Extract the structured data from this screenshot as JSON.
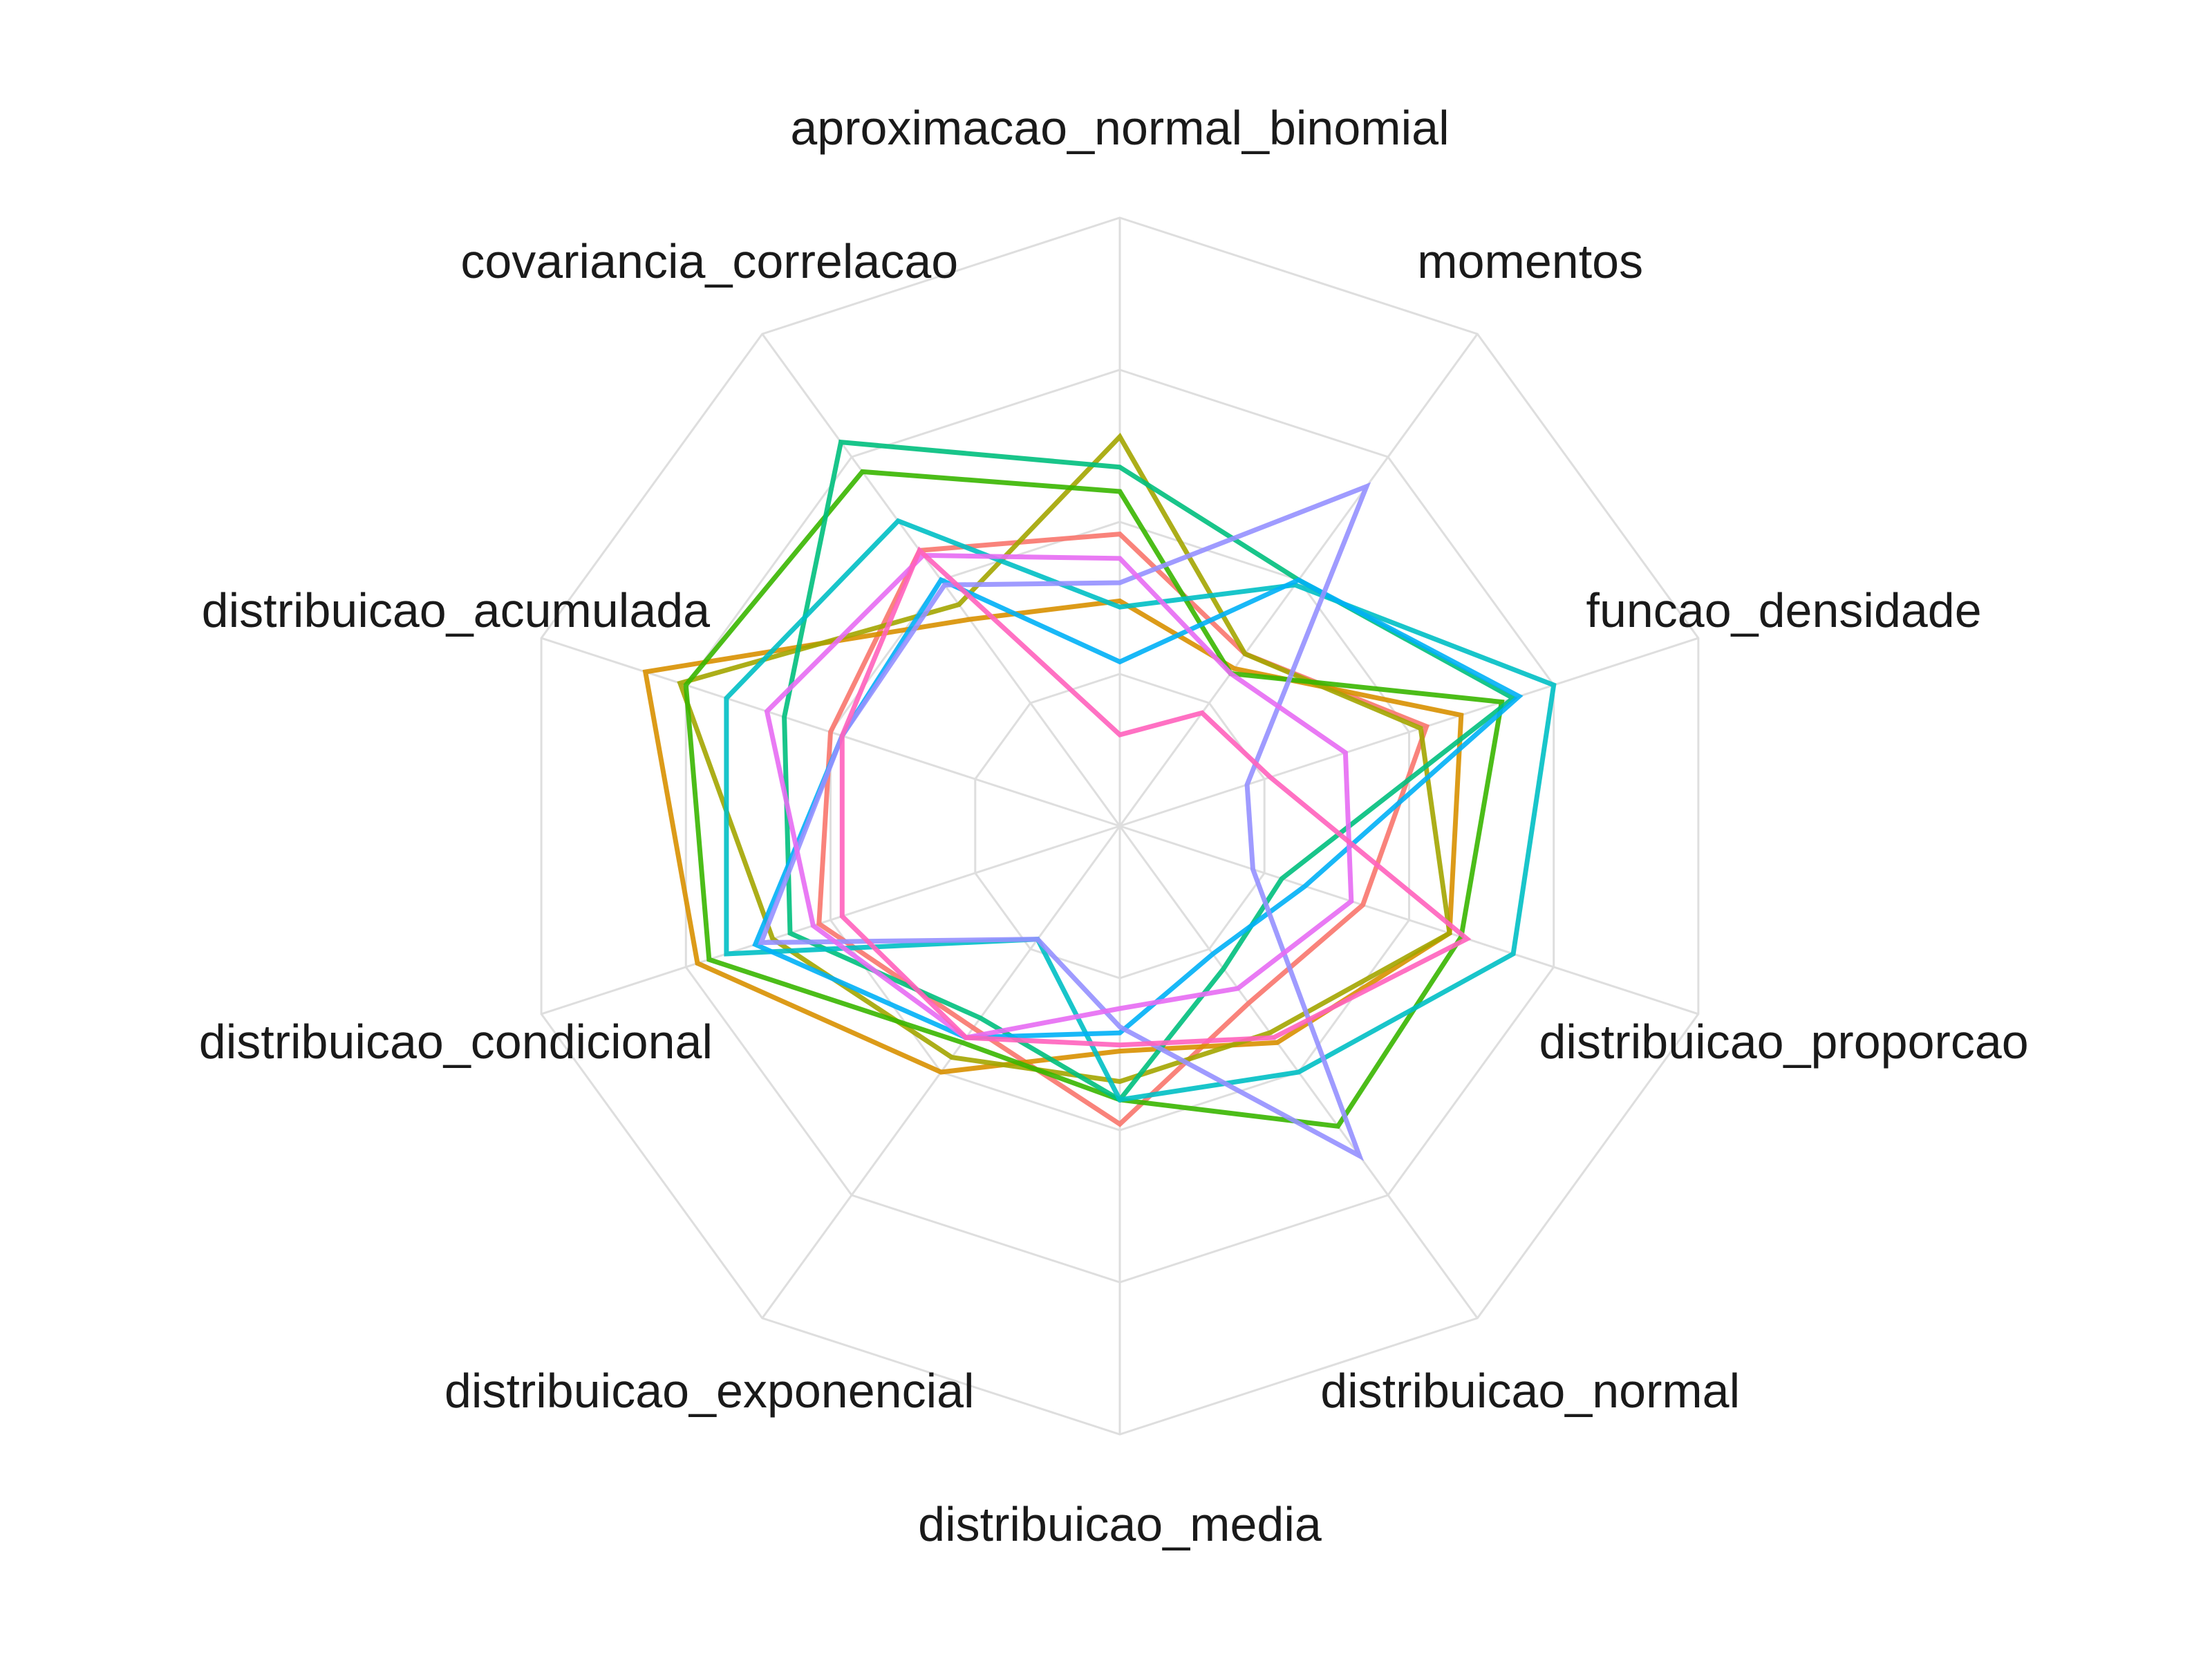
{
  "chart_data": {
    "type": "radar",
    "title": "",
    "axes": [
      "aproximacao_normal_binomial",
      "momentos",
      "funcao_densidade",
      "distribuicao_proporcao",
      "distribuicao_normal",
      "distribuicao_media",
      "distribuicao_exponencial",
      "distribuicao_condicional",
      "distribuicao_acumulada",
      "covariancia_correlacao"
    ],
    "range": [
      0,
      1
    ],
    "rings": 4,
    "grid": true,
    "legend": "none",
    "series": [
      {
        "color": "#F8766D",
        "values": [
          0.48,
          0.35,
          0.53,
          0.42,
          0.36,
          0.49,
          0.41,
          0.52,
          0.5,
          0.56
        ]
      },
      {
        "color": "#D89000",
        "values": [
          0.37,
          0.32,
          0.59,
          0.57,
          0.44,
          0.37,
          0.5,
          0.73,
          0.82,
          0.42
        ]
      },
      {
        "color": "#A3A500",
        "values": [
          0.64,
          0.35,
          0.52,
          0.57,
          0.42,
          0.42,
          0.47,
          0.6,
          0.76,
          0.45
        ]
      },
      {
        "color": "#39B600",
        "values": [
          0.55,
          0.31,
          0.66,
          0.59,
          0.61,
          0.45,
          0.44,
          0.71,
          0.75,
          0.72
        ]
      },
      {
        "color": "#00BF7D",
        "values": [
          0.59,
          0.5,
          0.68,
          0.28,
          0.29,
          0.45,
          0.39,
          0.57,
          0.58,
          0.78
        ]
      },
      {
        "color": "#00BFC4",
        "values": [
          0.36,
          0.49,
          0.75,
          0.68,
          0.5,
          0.45,
          0.23,
          0.68,
          0.68,
          0.62
        ]
      },
      {
        "color": "#00B0F6",
        "values": [
          0.27,
          0.5,
          0.69,
          0.32,
          0.26,
          0.34,
          0.43,
          0.63,
          0.48,
          0.5
        ]
      },
      {
        "color": "#9590FF",
        "values": [
          0.4,
          0.69,
          0.22,
          0.23,
          0.67,
          0.33,
          0.23,
          0.62,
          0.48,
          0.49
        ]
      },
      {
        "color": "#E76BF3",
        "values": [
          0.44,
          0.31,
          0.39,
          0.4,
          0.33,
          0.3,
          0.43,
          0.53,
          0.61,
          0.55
        ]
      },
      {
        "color": "#FF62BC",
        "values": [
          0.15,
          0.23,
          0.26,
          0.6,
          0.43,
          0.36,
          0.43,
          0.48,
          0.48,
          0.56
        ]
      }
    ]
  }
}
